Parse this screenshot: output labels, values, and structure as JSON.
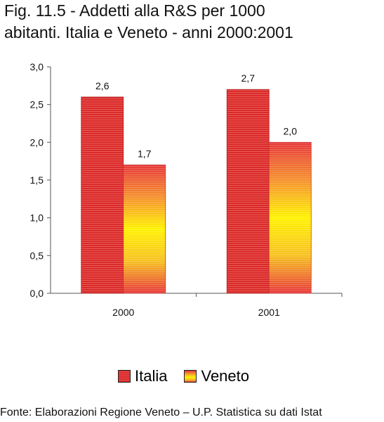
{
  "title_lines": [
    "Fig. 11.5 - Addetti alla R&S per 1000",
    "abitanti. Italia e Veneto - anni 2000:2001"
  ],
  "source": "Fonte: Elaborazioni Regione Veneto – U.P. Statistica su dati Istat",
  "colors": {
    "italia": "#d92a2a",
    "veneto_top": "#e8383a",
    "veneto_mid": "#fff200"
  },
  "chart_data": {
    "type": "bar",
    "categories": [
      "2000",
      "2001"
    ],
    "series": [
      {
        "name": "Italia",
        "values": [
          2.6,
          2.7
        ],
        "labels": [
          "2,6",
          "2,7"
        ]
      },
      {
        "name": "Veneto",
        "values": [
          1.7,
          2.0
        ],
        "labels": [
          "1,7",
          "2,0"
        ]
      }
    ],
    "ylim": [
      0,
      3
    ],
    "yticks": [
      "0,0",
      "0,5",
      "1,0",
      "1,5",
      "2,0",
      "2,5",
      "3,0"
    ],
    "ytick_values": [
      0,
      0.5,
      1.0,
      1.5,
      2.0,
      2.5,
      3.0
    ],
    "legend_position": "bottom",
    "grid": false
  }
}
